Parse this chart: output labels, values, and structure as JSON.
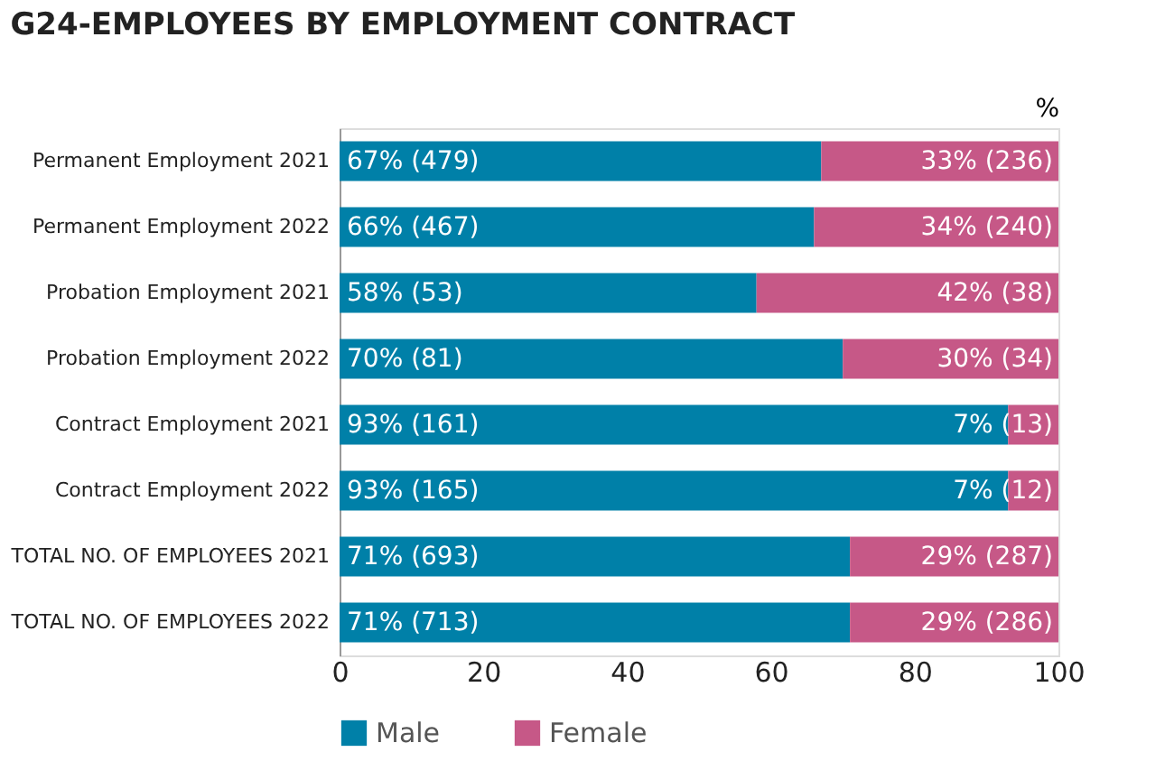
{
  "chart_data": {
    "type": "bar",
    "orientation": "horizontal",
    "stacked": true,
    "title": "G24-EMPLOYEES BY EMPLOYMENT CONTRACT",
    "xlabel": "%",
    "categories": [
      "Permanent Employment 2021",
      "Permanent Employment 2022",
      "Probation Employment 2021",
      "Probation Employment 2022",
      "Contract Employment 2021",
      "Contract Employment 2022",
      "TOTAL NO. OF EMPLOYEES 2021",
      "TOTAL NO. OF EMPLOYEES 2022"
    ],
    "series": [
      {
        "name": "Male",
        "color": "#0080a8",
        "values": [
          67,
          66,
          58,
          70,
          93,
          93,
          71,
          71
        ],
        "value_labels": [
          "67% (479)",
          "66% (467)",
          "58% (53)",
          "70% (81)",
          "93% (161)",
          "93% (165)",
          "71% (693)",
          "71% (713)"
        ]
      },
      {
        "name": "Female",
        "color": "#c65887",
        "values": [
          33,
          34,
          42,
          30,
          7,
          7,
          29,
          29
        ],
        "value_labels": [
          "33% (236)",
          "34% (240)",
          "42% (38)",
          "30% (34)",
          "7% (13)",
          "7% (12)",
          "29% (287)",
          "29% (286)"
        ]
      }
    ],
    "xlim": [
      0,
      100
    ],
    "xticks": [
      0,
      20,
      40,
      60,
      80,
      100
    ],
    "grid": false,
    "legend": "bottom"
  }
}
